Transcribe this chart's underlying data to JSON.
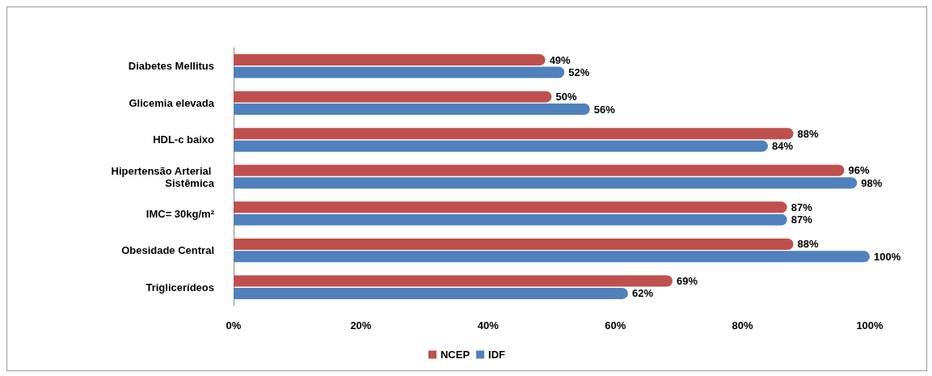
{
  "chart_data": {
    "type": "bar",
    "orientation": "horizontal",
    "categories": [
      "Diabetes Mellitus",
      "Glicemia elevada",
      "HDL-c baixo",
      "Hipertensão Arterial Sistêmica",
      "IMC= 30kg/m²",
      "Obesidade Central",
      "Triglicerídeos"
    ],
    "series": [
      {
        "name": "NCEP",
        "color": "#c0504d",
        "values": [
          49,
          50,
          88,
          96,
          87,
          88,
          69
        ],
        "value_labels": [
          "49%",
          "50%",
          "88%",
          "96%",
          "87%",
          "88%",
          "69%"
        ]
      },
      {
        "name": "IDF",
        "color": "#4f81bd",
        "values": [
          52,
          56,
          84,
          98,
          87,
          100,
          62
        ],
        "value_labels": [
          "52%",
          "56%",
          "84%",
          "98%",
          "87%",
          "100%",
          "62%"
        ]
      }
    ],
    "xlim": [
      0,
      100
    ],
    "xticks": [
      {
        "value": 0,
        "label": "0%"
      },
      {
        "value": 20,
        "label": "20%"
      },
      {
        "value": 40,
        "label": "40%"
      },
      {
        "value": 60,
        "label": "60%"
      },
      {
        "value": 80,
        "label": "80%"
      },
      {
        "value": 100,
        "label": "100%"
      }
    ],
    "grid": false,
    "legend": "bottom"
  }
}
